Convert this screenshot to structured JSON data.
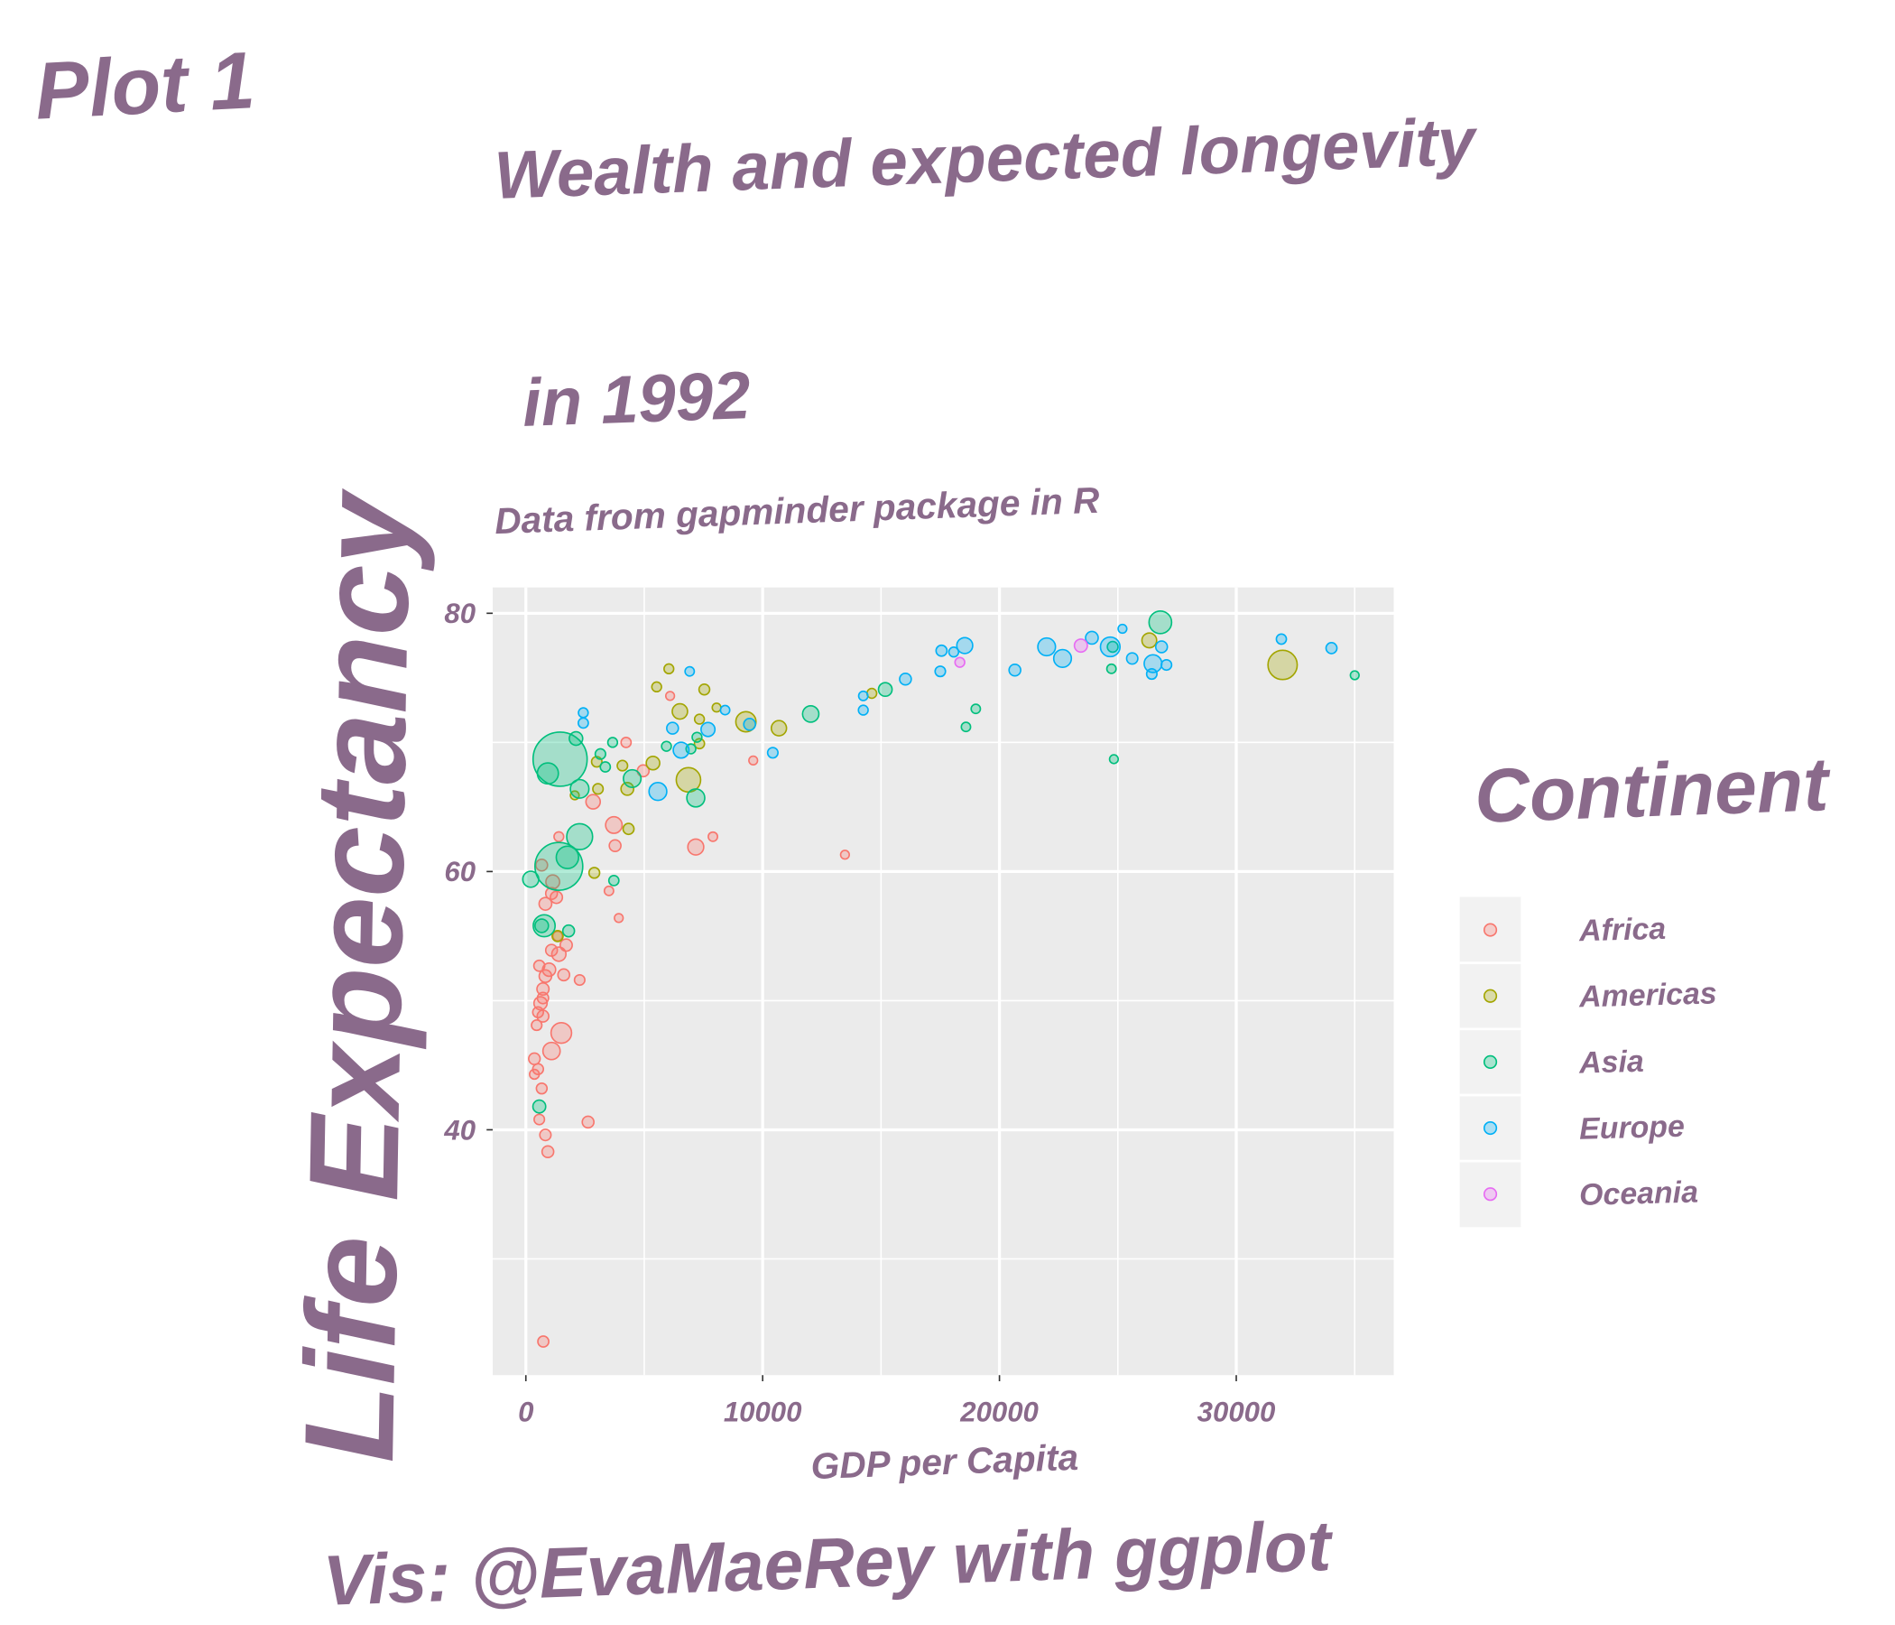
{
  "tag": "Plot 1",
  "chart_data": {
    "type": "scatter",
    "title": [
      "Wealth and expected longevity",
      "in 1992"
    ],
    "subtitle": "Data from gapminder package in R",
    "x_label": "GDP per Capita",
    "y_label": "Life Expectancy",
    "caption": "Vis: @EvaMaeRey with ggplot",
    "legend_title": "Continent",
    "grid": true,
    "xlim": [
      -1400,
      36650
    ],
    "xticks": [
      0,
      10000,
      20000,
      30000
    ],
    "ylim": [
      21,
      82
    ],
    "yticks": [
      40,
      60,
      80
    ],
    "series": [
      {
        "name": "Africa",
        "color": "#F8766D",
        "x": [
          737,
          930,
          826,
          568,
          2628,
          670,
          361,
          516,
          361,
          1084,
          1497,
          457,
          723,
          620,
          516,
          723,
          723,
          826,
          981,
          1600,
          2272,
          568,
          1084,
          1394,
          1704,
          1342,
          826,
          1084,
          1290,
          3510,
          3924,
          670,
          1136,
          1394,
          3769,
          3717,
          2840,
          7176,
          7899,
          13475,
          9602,
          4233,
          6092,
          4956
        ],
        "values": [
          23.6,
          38.3,
          39.6,
          40.8,
          40.6,
          43.2,
          44.3,
          44.7,
          45.5,
          46.1,
          47.5,
          48.1,
          48.8,
          49.8,
          49.1,
          50.2,
          50.9,
          51.9,
          52.4,
          52.0,
          51.6,
          52.7,
          53.9,
          53.6,
          54.3,
          55.0,
          57.5,
          58.3,
          58.0,
          58.5,
          56.4,
          60.5,
          59.2,
          62.7,
          62.0,
          63.6,
          65.4,
          61.9,
          62.7,
          61.3,
          68.6,
          70.0,
          73.6,
          67.8
        ],
        "sizes": [
          7,
          10,
          8,
          5,
          10,
          6,
          3,
          6,
          9,
          52,
          93,
          5,
          10,
          18,
          6,
          8,
          12,
          14,
          18,
          10,
          5,
          7,
          10,
          25,
          12,
          3,
          15,
          10,
          12,
          2,
          1,
          10,
          22,
          3,
          10,
          45,
          26,
          39,
          2,
          1,
          1,
          4,
          1,
          10
        ]
      },
      {
        "name": "Americas",
        "color": "#A3A500",
        "x": [
          31957,
          6040,
          5524,
          7537,
          6505,
          7331,
          8054,
          9293,
          10687,
          14610,
          26327,
          6866,
          7331,
          4078,
          2994,
          3046,
          4285,
          2065,
          4336,
          2891,
          1342,
          5369
        ],
        "values": [
          76.0,
          75.7,
          74.3,
          74.1,
          72.4,
          71.8,
          72.7,
          71.6,
          71.1,
          73.8,
          77.9,
          67.1,
          69.9,
          68.2,
          68.5,
          66.4,
          66.4,
          65.9,
          63.3,
          59.9,
          55.0,
          68.4
        ],
        "sizes": [
          256,
          3,
          3,
          6,
          34,
          3,
          1,
          88,
          33,
          3,
          29,
          155,
          4,
          5,
          5,
          5,
          15,
          1,
          7,
          6,
          7,
          20
        ]
      },
      {
        "name": "Asia",
        "color": "#00BF7D",
        "x": [
          1446,
          1394,
          930,
          2272,
          1755,
          207,
          774,
          1807,
          670,
          568,
          2117,
          2272,
          3149,
          3665,
          3356,
          4491,
          3717,
          5937,
          7228,
          7176,
          12029,
          15178,
          19000,
          18585,
          24832,
          24729,
          24781,
          26793,
          35002,
          6970
        ],
        "values": [
          68.7,
          60.4,
          67.6,
          62.7,
          61.1,
          59.4,
          55.8,
          55.4,
          55.8,
          41.8,
          70.3,
          66.4,
          69.1,
          70.0,
          68.1,
          67.2,
          59.3,
          69.7,
          70.4,
          65.7,
          72.2,
          74.1,
          72.6,
          71.2,
          68.7,
          75.7,
          77.4,
          79.3,
          75.2,
          69.5
        ],
        "sizes": [
          1165,
          872,
          100,
          184,
          120,
          40,
          113,
          10,
          20,
          16,
          20,
          67,
          5,
          3,
          4,
          56,
          4,
          3,
          3,
          60,
          43,
          21,
          2,
          2,
          1,
          2,
          6,
          124,
          1,
          3
        ]
      },
      {
        "name": "Europe",
        "color": "#00B0F6",
        "x": [
          31905,
          34021,
          27052,
          26484,
          26845,
          26432,
          25606,
          25194,
          24678,
          23903,
          22664,
          21993,
          20651,
          18534,
          18069,
          17553,
          17501,
          16030,
          14249,
          14249,
          10428,
          9448,
          7692,
          6195,
          8415,
          6918,
          2426,
          2426,
          6557,
          5576
        ],
        "values": [
          78.0,
          77.3,
          76.0,
          76.1,
          77.4,
          75.3,
          76.5,
          78.8,
          77.4,
          78.1,
          76.5,
          77.4,
          75.6,
          77.5,
          77.0,
          77.1,
          75.5,
          74.9,
          73.6,
          72.5,
          69.2,
          71.4,
          71.0,
          71.1,
          72.5,
          75.5,
          72.3,
          71.5,
          69.4,
          66.2
        ],
        "sizes": [
          4,
          7,
          5,
          57,
          10,
          5,
          8,
          1,
          80,
          15,
          57,
          57,
          10,
          39,
          3,
          7,
          5,
          10,
          2,
          3,
          5,
          10,
          23,
          10,
          2,
          2,
          3,
          4,
          38,
          58
        ]
      },
      {
        "name": "Oceania",
        "color": "#E76BF3",
        "x": [
          23438,
          18327
        ],
        "values": [
          77.5,
          76.2
        ],
        "sizes": [
          17,
          3
        ]
      }
    ]
  }
}
